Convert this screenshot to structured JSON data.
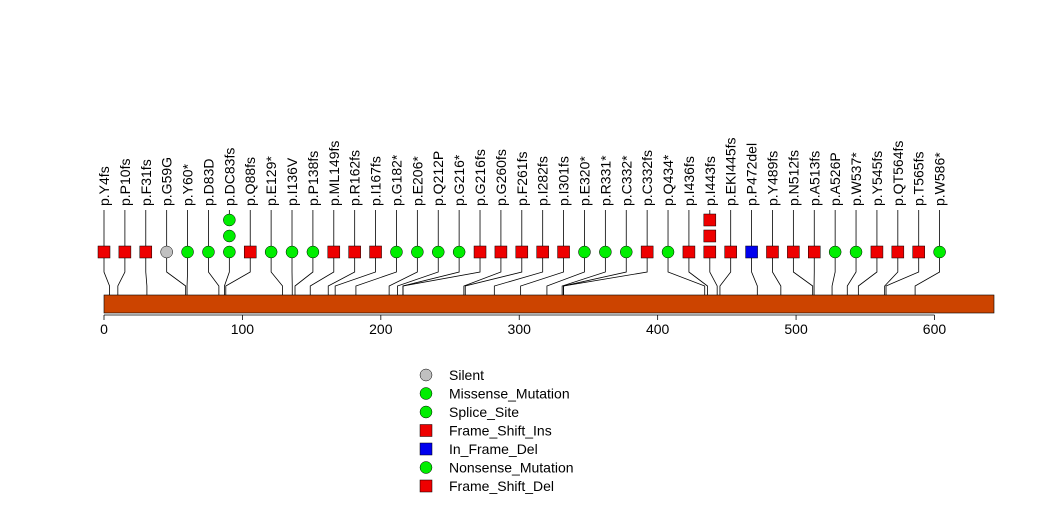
{
  "chart_data": {
    "type": "lollipop",
    "title": "",
    "xlabel": "",
    "ylabel": "",
    "xlim": [
      0,
      643
    ],
    "xticks": [
      0,
      100,
      200,
      300,
      400,
      500,
      600
    ],
    "protein_bar_color": "#CC4400",
    "mutations": [
      {
        "label": "p.Y4fs",
        "pos": 4,
        "type": "Frame_Shift_Del",
        "count": 1
      },
      {
        "label": "p.P10fs",
        "pos": 10,
        "type": "Frame_Shift_Del",
        "count": 1
      },
      {
        "label": "p.F31fs",
        "pos": 31,
        "type": "Frame_Shift_Del",
        "count": 1
      },
      {
        "label": "p.G59G",
        "pos": 59,
        "type": "Silent",
        "count": 1
      },
      {
        "label": "p.Y60*",
        "pos": 60,
        "type": "Nonsense_Mutation",
        "count": 1
      },
      {
        "label": "p.D83D",
        "pos": 83,
        "type": "Splice_Site",
        "count": 1
      },
      {
        "label": "p.DC83fs",
        "pos": 87,
        "type": "Splice_Site",
        "count": 3
      },
      {
        "label": "p.Q88fs",
        "pos": 88,
        "type": "Frame_Shift_Del",
        "count": 1
      },
      {
        "label": "p.E129*",
        "pos": 129,
        "type": "Nonsense_Mutation",
        "count": 1
      },
      {
        "label": "p.I136V",
        "pos": 136,
        "type": "Missense_Mutation",
        "count": 1
      },
      {
        "label": "p.P138fs",
        "pos": 138,
        "type": "Missense_Mutation",
        "count": 1
      },
      {
        "label": "p.ML149fs",
        "pos": 149,
        "type": "Frame_Shift_Del",
        "count": 1
      },
      {
        "label": "p.R162fs",
        "pos": 162,
        "type": "Frame_Shift_Del",
        "count": 1
      },
      {
        "label": "p.I167fs",
        "pos": 167,
        "type": "Frame_Shift_Del",
        "count": 1
      },
      {
        "label": "p.G182*",
        "pos": 182,
        "type": "Nonsense_Mutation",
        "count": 1
      },
      {
        "label": "p.E206*",
        "pos": 206,
        "type": "Nonsense_Mutation",
        "count": 1
      },
      {
        "label": "p.Q212P",
        "pos": 212,
        "type": "Missense_Mutation",
        "count": 1
      },
      {
        "label": "p.G216*",
        "pos": 216,
        "type": "Nonsense_Mutation",
        "count": 1
      },
      {
        "label": "p.G216fs",
        "pos": 216,
        "type": "Frame_Shift_Del",
        "count": 1
      },
      {
        "label": "p.G260fs",
        "pos": 260,
        "type": "Frame_Shift_Del",
        "count": 1
      },
      {
        "label": "p.F261fs",
        "pos": 261,
        "type": "Frame_Shift_Del",
        "count": 1
      },
      {
        "label": "p.I282fs",
        "pos": 282,
        "type": "Frame_Shift_Del",
        "count": 1
      },
      {
        "label": "p.I301fs",
        "pos": 301,
        "type": "Frame_Shift_Del",
        "count": 1
      },
      {
        "label": "p.E320*",
        "pos": 320,
        "type": "Nonsense_Mutation",
        "count": 1
      },
      {
        "label": "p.R331*",
        "pos": 331,
        "type": "Nonsense_Mutation",
        "count": 1
      },
      {
        "label": "p.C332*",
        "pos": 332,
        "type": "Nonsense_Mutation",
        "count": 1
      },
      {
        "label": "p.C332fs",
        "pos": 332,
        "type": "Frame_Shift_Del",
        "count": 1
      },
      {
        "label": "p.Q434*",
        "pos": 434,
        "type": "Nonsense_Mutation",
        "count": 1
      },
      {
        "label": "p.I436fs",
        "pos": 436,
        "type": "Frame_Shift_Del",
        "count": 1
      },
      {
        "label": "p.I443fs",
        "pos": 443,
        "type": "Frame_Shift_Del",
        "count": 3
      },
      {
        "label": "p.EKI445fs",
        "pos": 445,
        "type": "Frame_Shift_Del",
        "count": 1
      },
      {
        "label": "p.P472del",
        "pos": 472,
        "type": "In_Frame_Del",
        "count": 1
      },
      {
        "label": "p.Y489fs",
        "pos": 489,
        "type": "Frame_Shift_Del",
        "count": 1
      },
      {
        "label": "p.N512fs",
        "pos": 512,
        "type": "Frame_Shift_Del",
        "count": 1
      },
      {
        "label": "p.A513fs",
        "pos": 513,
        "type": "Frame_Shift_Del",
        "count": 1
      },
      {
        "label": "p.A526P",
        "pos": 526,
        "type": "Missense_Mutation",
        "count": 1
      },
      {
        "label": "p.W537*",
        "pos": 537,
        "type": "Nonsense_Mutation",
        "count": 1
      },
      {
        "label": "p.Y545fs",
        "pos": 545,
        "type": "Frame_Shift_Del",
        "count": 1
      },
      {
        "label": "p.QT564fs",
        "pos": 564,
        "type": "Frame_Shift_Del",
        "count": 1
      },
      {
        "label": "p.T565fs",
        "pos": 565,
        "type": "Frame_Shift_Del",
        "count": 1
      },
      {
        "label": "p.W586*",
        "pos": 586,
        "type": "Nonsense_Mutation",
        "count": 1
      }
    ],
    "legend": [
      {
        "label": "Silent",
        "shape": "circle",
        "color": "#C0C0C0"
      },
      {
        "label": "Missense_Mutation",
        "shape": "circle",
        "color": "#00EE00"
      },
      {
        "label": "Splice_Site",
        "shape": "circle",
        "color": "#00EE00"
      },
      {
        "label": "Frame_Shift_Ins",
        "shape": "square",
        "color": "#EE0000"
      },
      {
        "label": "In_Frame_Del",
        "shape": "square",
        "color": "#0000EE"
      },
      {
        "label": "Nonsense_Mutation",
        "shape": "circle",
        "color": "#00EE00"
      },
      {
        "label": "Frame_Shift_Del",
        "shape": "square",
        "color": "#EE0000"
      }
    ],
    "legend_position": "bottom-center"
  }
}
